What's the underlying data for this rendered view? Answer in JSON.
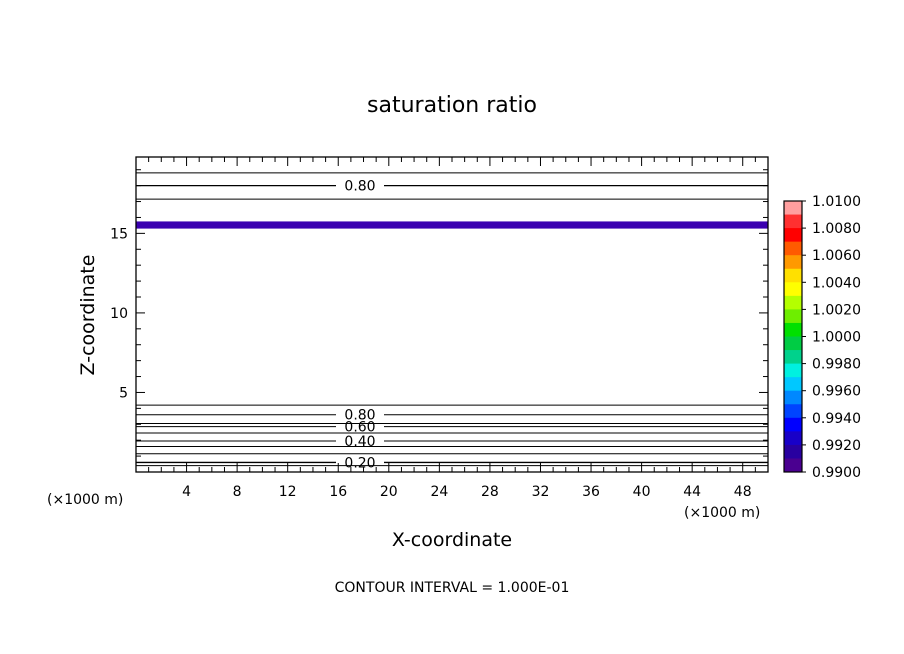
{
  "chart_data": {
    "type": "contour",
    "title": "saturation ratio",
    "xlabel": "X-coordinate",
    "ylabel": "Z-coordinate",
    "x_unit_label": "(×1000 m)",
    "y_unit_label": "(×1000 m)",
    "xlim": [
      0,
      50
    ],
    "ylim": [
      0,
      19.8
    ],
    "x_ticks": [
      4,
      8,
      12,
      16,
      20,
      24,
      28,
      32,
      36,
      40,
      44,
      48
    ],
    "y_ticks": [
      5,
      10,
      15
    ],
    "x_minor_step": 1,
    "y_minor_step": 1,
    "contour_levels": [
      {
        "z": 0.4,
        "label": ""
      },
      {
        "z": 0.6,
        "label": "0.20"
      },
      {
        "z": 1.15,
        "label": ""
      },
      {
        "z": 1.6,
        "label": ""
      },
      {
        "z": 1.95,
        "label": "0.40"
      },
      {
        "z": 2.45,
        "label": ""
      },
      {
        "z": 2.85,
        "label": "0.60"
      },
      {
        "z": 3.05,
        "label": ""
      },
      {
        "z": 3.6,
        "label": "0.80"
      },
      {
        "z": 4.2,
        "label": ""
      },
      {
        "z": 17.15,
        "label": ""
      },
      {
        "z": 18.0,
        "label": "0.80"
      },
      {
        "z": 18.8,
        "label": ""
      }
    ],
    "shaded_band": {
      "z_min": 15.3,
      "z_max": 15.75,
      "value_range": [
        0.99,
        0.992
      ]
    },
    "colorbar": {
      "labels": [
        "1.0100",
        "1.0080",
        "1.0060",
        "1.0040",
        "1.0020",
        "1.0000",
        "0.9980",
        "0.9960",
        "0.9940",
        "0.9920",
        "0.9900"
      ],
      "colors": [
        "#ff9f9f",
        "#ff3030",
        "#ff0000",
        "#ff5a00",
        "#ff9900",
        "#ffe000",
        "#ffff00",
        "#b4ff00",
        "#6eee00",
        "#00e000",
        "#00cc44",
        "#00d28c",
        "#00f0e0",
        "#00c8ff",
        "#0088ff",
        "#0044ff",
        "#0000ff",
        "#1800c8",
        "#2800a0",
        "#4a0090"
      ],
      "band_color": "#3a00b0"
    },
    "footnote": "CONTOUR INTERVAL = 1.000E-01",
    "grid": false,
    "legend": "colorbar-right"
  }
}
